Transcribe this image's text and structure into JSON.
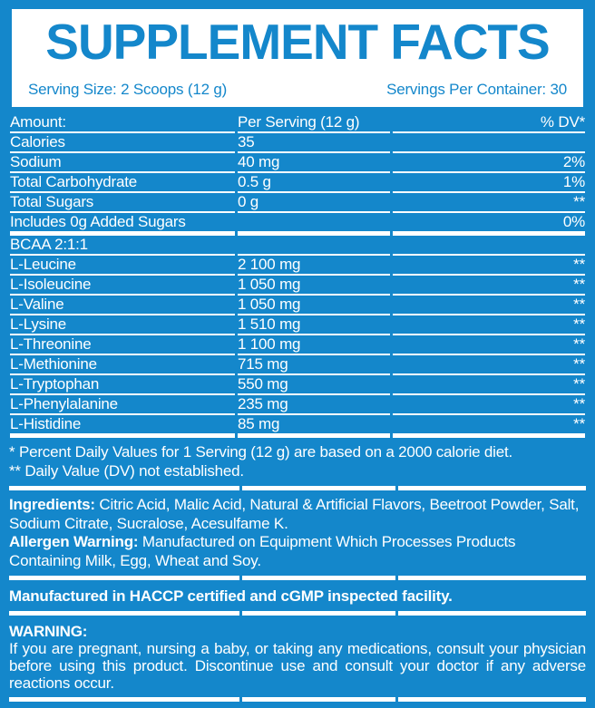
{
  "colors": {
    "blue": "#1487cb",
    "white": "#ffffff"
  },
  "header": {
    "title": "SUPPLEMENT FACTS",
    "serving_size": "Serving Size: 2 Scoops (12 g)",
    "servings_per_container": "Servings Per Container: 30"
  },
  "table": {
    "columns": [
      "Amount:",
      "Per Serving (12 g)",
      "% DV*"
    ],
    "rows": [
      {
        "name": "Calories",
        "amount": "35",
        "dv": ""
      },
      {
        "name": "Sodium",
        "amount": "40 mg",
        "dv": "2%"
      },
      {
        "name": "Total Carbohydrate",
        "amount": "0.5 g",
        "dv": "1%"
      },
      {
        "name": "Total Sugars",
        "amount": "0 g",
        "dv": "**"
      },
      {
        "name": "Includes 0g Added Sugars",
        "amount": "",
        "dv": "0%"
      },
      {
        "name": "BCAA 2:1:1",
        "amount": "",
        "dv": ""
      },
      {
        "name": "L-Leucine",
        "amount": "2 100 mg",
        "dv": "**"
      },
      {
        "name": "L-Isoleucine",
        "amount": "1 050 mg",
        "dv": "**"
      },
      {
        "name": "L-Valine",
        "amount": "1 050 mg",
        "dv": "**"
      },
      {
        "name": "L-Lysine",
        "amount": "1 510 mg",
        "dv": "**"
      },
      {
        "name": "L-Threonine",
        "amount": "1 100 mg",
        "dv": "**"
      },
      {
        "name": "L-Methionine",
        "amount": "715 mg",
        "dv": "**"
      },
      {
        "name": "L-Tryptophan",
        "amount": "550 mg",
        "dv": "**"
      },
      {
        "name": "L-Phenylalanine",
        "amount": "235 mg",
        "dv": "**"
      },
      {
        "name": "L-Histidine",
        "amount": "85 mg",
        "dv": "**"
      }
    ]
  },
  "footnotes": {
    "line1": "* Percent Daily Values for 1 Serving (12 g) are based on a 2000 calorie diet.",
    "line2": "** Daily Value (DV) not established."
  },
  "ingredients": {
    "label": "Ingredients:",
    "text": " Citric Acid, Malic Acid, Natural & Artificial Flavors, Beetroot Powder, Salt, Sodium Citrate, Sucralose, Acesulfame K."
  },
  "allergen": {
    "label": "Allergen Warning:",
    "text": " Manufactured on Equipment Which Processes Products Containing Milk, Egg, Wheat and Soy."
  },
  "facility": "Manufactured in HACCP certified and cGMP inspected facility.",
  "warning": {
    "label": "WARNING:",
    "text": "If you are pregnant, nursing a baby, or taking any medications, consult your physician before using this product. Discontinue use and consult your doctor if any adverse reactions occur."
  }
}
